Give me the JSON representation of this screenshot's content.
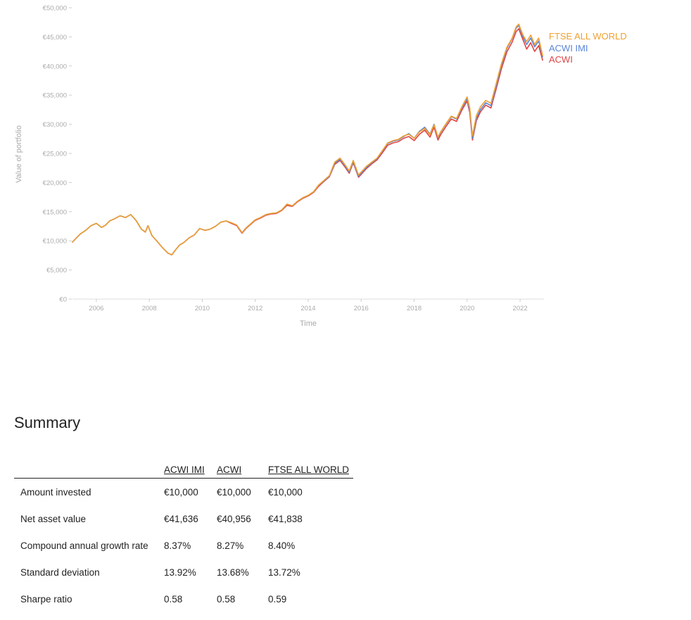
{
  "chart_data": {
    "type": "line",
    "xlabel": "Time",
    "ylabel": "Value of portfolio",
    "ylim": [
      0,
      50000
    ],
    "xlim": [
      2005.1,
      2022.9
    ],
    "yticks": [
      0,
      5000,
      10000,
      15000,
      20000,
      25000,
      30000,
      35000,
      40000,
      45000,
      50000
    ],
    "ytick_labels": [
      "€0",
      "€5,000",
      "€10,000",
      "€15,000",
      "€20,000",
      "€25,000",
      "€30,000",
      "€35,000",
      "€40,000",
      "€45,000",
      "€50,000"
    ],
    "xticks": [
      2006,
      2008,
      2010,
      2012,
      2014,
      2016,
      2018,
      2020,
      2022
    ],
    "xtick_labels": [
      "2006",
      "2008",
      "2010",
      "2012",
      "2014",
      "2016",
      "2018",
      "2020",
      "2022"
    ],
    "grid": false,
    "legend_position": "right-of-line-ends",
    "x": [
      2005.1,
      2005.25,
      2005.4,
      2005.6,
      2005.8,
      2006.0,
      2006.2,
      2006.35,
      2006.5,
      2006.7,
      2006.9,
      2007.1,
      2007.3,
      2007.5,
      2007.7,
      2007.85,
      2007.95,
      2008.1,
      2008.3,
      2008.5,
      2008.7,
      2008.85,
      2009.0,
      2009.15,
      2009.3,
      2009.5,
      2009.7,
      2009.9,
      2010.1,
      2010.3,
      2010.5,
      2010.7,
      2010.9,
      2011.1,
      2011.3,
      2011.5,
      2011.65,
      2011.8,
      2012.0,
      2012.2,
      2012.4,
      2012.6,
      2012.8,
      2013.0,
      2013.2,
      2013.4,
      2013.6,
      2013.8,
      2014.0,
      2014.2,
      2014.4,
      2014.6,
      2014.8,
      2015.0,
      2015.2,
      2015.4,
      2015.55,
      2015.7,
      2015.9,
      2016.0,
      2016.2,
      2016.4,
      2016.6,
      2016.8,
      2017.0,
      2017.2,
      2017.4,
      2017.6,
      2017.8,
      2018.0,
      2018.2,
      2018.4,
      2018.6,
      2018.75,
      2018.9,
      2019.0,
      2019.2,
      2019.4,
      2019.6,
      2019.8,
      2020.0,
      2020.1,
      2020.2,
      2020.35,
      2020.5,
      2020.7,
      2020.9,
      2021.1,
      2021.3,
      2021.5,
      2021.7,
      2021.85,
      2021.95,
      2022.1,
      2022.25,
      2022.4,
      2022.55,
      2022.7,
      2022.85
    ],
    "series": [
      {
        "name": "FTSE ALL WORLD",
        "color": "#f0a030",
        "values": [
          9800,
          10500,
          11200,
          11800,
          12600,
          13000,
          12300,
          12700,
          13400,
          13800,
          14300,
          14000,
          14500,
          13500,
          12000,
          11500,
          12600,
          10900,
          9900,
          8800,
          7900,
          7600,
          8500,
          9300,
          9700,
          10500,
          11000,
          12100,
          11800,
          12000,
          12500,
          13200,
          13400,
          13100,
          12700,
          11400,
          12200,
          12800,
          13600,
          14000,
          14500,
          14700,
          14800,
          15300,
          16300,
          16000,
          16800,
          17400,
          17800,
          18400,
          19600,
          20400,
          21200,
          23500,
          24200,
          23000,
          22000,
          23800,
          21300,
          21800,
          22800,
          23500,
          24200,
          25500,
          26800,
          27200,
          27400,
          28000,
          28300,
          27600,
          28700,
          29300,
          28200,
          29900,
          27800,
          28700,
          30100,
          31400,
          31000,
          33000,
          34700,
          32800,
          28000,
          31500,
          33000,
          34100,
          33600,
          37000,
          40500,
          43200,
          44800,
          46700,
          47200,
          45400,
          44200,
          45300,
          43700,
          44800,
          41800
        ]
      },
      {
        "name": "ACWI IMI",
        "color": "#5a86d6",
        "values": [
          9800,
          10500,
          11200,
          11800,
          12600,
          13000,
          12300,
          12700,
          13400,
          13800,
          14300,
          14000,
          14500,
          13500,
          12000,
          11500,
          12600,
          10900,
          9900,
          8800,
          7900,
          7600,
          8500,
          9300,
          9700,
          10500,
          11000,
          12100,
          11800,
          12000,
          12500,
          13200,
          13400,
          13100,
          12700,
          11400,
          12200,
          12800,
          13600,
          14000,
          14500,
          14700,
          14800,
          15300,
          16300,
          16000,
          16800,
          17400,
          17800,
          18400,
          19600,
          20300,
          21100,
          23300,
          24000,
          22800,
          21800,
          23600,
          21100,
          21600,
          22600,
          23400,
          24100,
          25400,
          26700,
          27100,
          27300,
          27900,
          28400,
          27600,
          28800,
          29500,
          28300,
          30000,
          27700,
          28600,
          30000,
          31300,
          30900,
          32800,
          34400,
          32400,
          27600,
          31000,
          32500,
          33700,
          33200,
          36600,
          40200,
          43000,
          44700,
          46500,
          47000,
          45100,
          43700,
          44800,
          43300,
          44300,
          41600
        ]
      },
      {
        "name": "ACWI",
        "color": "#e04444",
        "values": [
          9800,
          10500,
          11200,
          11800,
          12600,
          13000,
          12300,
          12700,
          13400,
          13800,
          14300,
          14000,
          14500,
          13500,
          12000,
          11500,
          12600,
          10900,
          9900,
          8800,
          7900,
          7600,
          8500,
          9300,
          9700,
          10500,
          11000,
          12100,
          11800,
          12000,
          12500,
          13200,
          13400,
          13000,
          12600,
          11300,
          12100,
          12700,
          13500,
          13900,
          14400,
          14600,
          14700,
          15200,
          16100,
          15900,
          16700,
          17300,
          17700,
          18300,
          19400,
          20200,
          21000,
          23100,
          23800,
          22600,
          21600,
          23400,
          20900,
          21400,
          22400,
          23200,
          23900,
          25100,
          26400,
          26800,
          27000,
          27600,
          27900,
          27200,
          28300,
          29000,
          27800,
          29500,
          27300,
          28200,
          29600,
          30900,
          30500,
          32400,
          34000,
          32000,
          27300,
          30600,
          32100,
          33300,
          32800,
          36100,
          39600,
          42400,
          44100,
          45900,
          46400,
          44600,
          42900,
          44000,
          42500,
          43500,
          41000
        ]
      }
    ]
  },
  "summary": {
    "title": "Summary",
    "columns": [
      "ACWI IMI",
      "ACWI",
      "FTSE ALL WORLD"
    ],
    "rows": [
      {
        "label": "Amount invested",
        "values": [
          "€10,000",
          "€10,000",
          "€10,000"
        ]
      },
      {
        "label": "Net asset value",
        "values": [
          "€41,636",
          "€40,956",
          "€41,838"
        ]
      },
      {
        "label": "Compound annual growth rate",
        "values": [
          "8.37%",
          "8.27%",
          "8.40%"
        ]
      },
      {
        "label": "Standard deviation",
        "values": [
          "13.92%",
          "13.68%",
          "13.72%"
        ]
      },
      {
        "label": "Sharpe ratio",
        "values": [
          "0.58",
          "0.58",
          "0.59"
        ]
      }
    ]
  }
}
